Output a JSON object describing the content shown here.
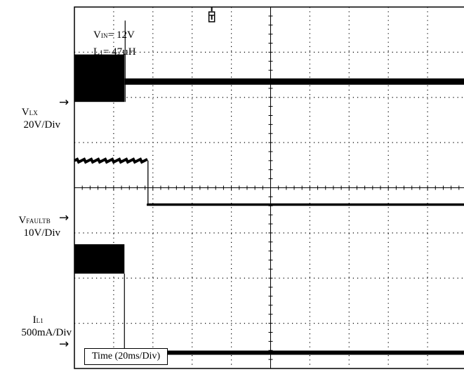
{
  "chart_data": {
    "type": "line",
    "title": "",
    "conditions": {
      "vin": {
        "symbol": "V",
        "sub": "IN",
        "value": "= 12V"
      },
      "l1": {
        "symbol": "L",
        "sub": "1",
        "value": "= 47µH"
      }
    },
    "xlabel": "Time (20ms/Div)",
    "x_unit": "ms",
    "x_divisions": 10,
    "y_divisions": 8,
    "xlim": [
      0,
      200
    ],
    "trigger_marker": "T",
    "series": [
      {
        "symbol": "V",
        "sub": "LX",
        "scale": "20V/Div",
        "description": "switching burst until fault, then flat",
        "ground_div": 5.9,
        "burst_top_div": 6.95,
        "fault_time_ms": 25.5,
        "spike_top_div": 7.7,
        "after_level_div": 6.35
      },
      {
        "symbol": "V",
        "sub": "FAULTB",
        "scale": "10V/Div",
        "ground_div": 3.35,
        "high_level_div": 4.6,
        "fall_time_ms": 37.5,
        "low_level_div": 3.65
      },
      {
        "symbol": "I",
        "sub": "L1",
        "scale": "500mA/Div",
        "ground_div": 0.55,
        "burst_bottom_div": 2.1,
        "burst_top_div": 2.75,
        "fault_time_ms": 25.5,
        "after_level_div": 0.35
      }
    ],
    "ground_marker": "→",
    "grid": true
  }
}
